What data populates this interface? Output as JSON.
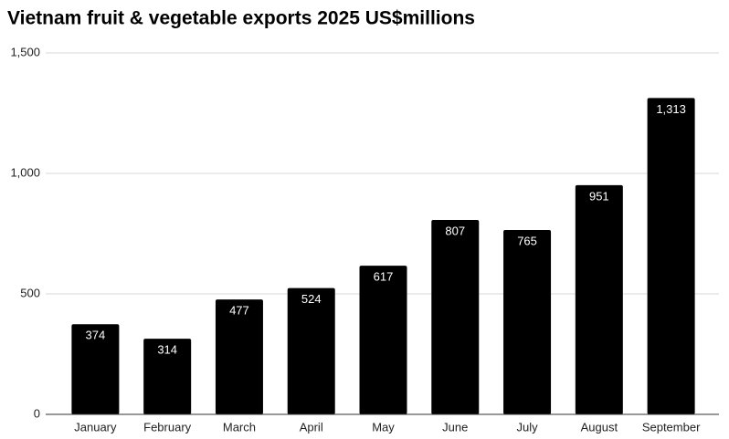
{
  "chart_data": {
    "type": "bar",
    "title": "Vietnam fruit & vegetable exports 2025 US$millions",
    "categories": [
      "January",
      "February",
      "March",
      "April",
      "May",
      "June",
      "July",
      "August",
      "September"
    ],
    "values": [
      374,
      314,
      477,
      524,
      617,
      807,
      765,
      951,
      1313
    ],
    "value_labels": [
      "374",
      "314",
      "477",
      "524",
      "617",
      "807",
      "765",
      "951",
      "1,313"
    ],
    "color": "#000000",
    "ylim": [
      0,
      1500
    ],
    "yticks": [
      0,
      500,
      {
        "value": 1000,
        "label": "1,000"
      },
      {
        "value": 1500,
        "label": "1,500"
      }
    ],
    "grid": true
  }
}
